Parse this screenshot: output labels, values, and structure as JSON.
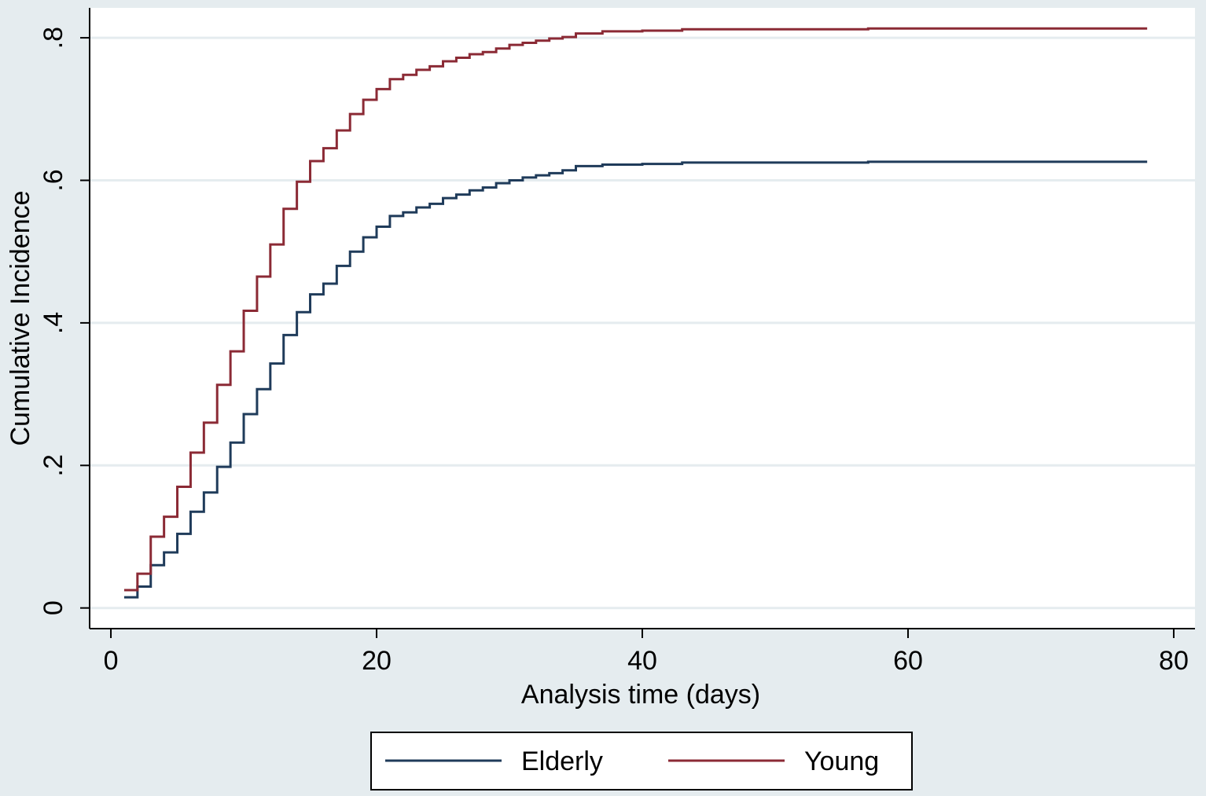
{
  "chart_data": {
    "type": "step",
    "x_label": "Analysis time (days)",
    "y_label": "Cumulative Incidence",
    "x": [
      1,
      2,
      3,
      4,
      5,
      6,
      7,
      8,
      9,
      10,
      11,
      12,
      13,
      14,
      15,
      16,
      17,
      18,
      19,
      20,
      21,
      22,
      23,
      24,
      25,
      26,
      27,
      28,
      29,
      30,
      31,
      32,
      33,
      34,
      35,
      37,
      40,
      43,
      57,
      78
    ],
    "series": [
      {
        "name": "Elderly",
        "color": "#1f3b5a",
        "values": [
          0.015,
          0.03,
          0.06,
          0.078,
          0.104,
          0.135,
          0.162,
          0.198,
          0.232,
          0.272,
          0.307,
          0.343,
          0.383,
          0.415,
          0.44,
          0.455,
          0.48,
          0.5,
          0.52,
          0.535,
          0.55,
          0.555,
          0.562,
          0.567,
          0.575,
          0.58,
          0.586,
          0.59,
          0.596,
          0.6,
          0.604,
          0.607,
          0.61,
          0.614,
          0.62,
          0.622,
          0.623,
          0.625,
          0.626,
          0.626
        ]
      },
      {
        "name": "Young",
        "color": "#8b2a35",
        "values": [
          0.025,
          0.048,
          0.1,
          0.128,
          0.17,
          0.218,
          0.26,
          0.313,
          0.36,
          0.417,
          0.465,
          0.51,
          0.56,
          0.598,
          0.627,
          0.645,
          0.67,
          0.693,
          0.713,
          0.728,
          0.742,
          0.748,
          0.755,
          0.76,
          0.767,
          0.772,
          0.777,
          0.78,
          0.785,
          0.79,
          0.793,
          0.796,
          0.799,
          0.801,
          0.806,
          0.809,
          0.81,
          0.812,
          0.813,
          0.813
        ]
      }
    ],
    "xlim": [
      -1.6,
      81.6
    ],
    "xticks": [
      0,
      20,
      40,
      60,
      80
    ],
    "ylim": [
      -0.029,
      0.842
    ],
    "yticks": [
      0,
      {
        "value": 0.2,
        "label": ".2"
      },
      {
        "value": 0.4,
        "label": ".4"
      },
      {
        "value": 0.6,
        "label": ".6"
      },
      {
        "value": 0.8,
        "label": ".8"
      }
    ],
    "grid": true,
    "legend": "bottom"
  }
}
